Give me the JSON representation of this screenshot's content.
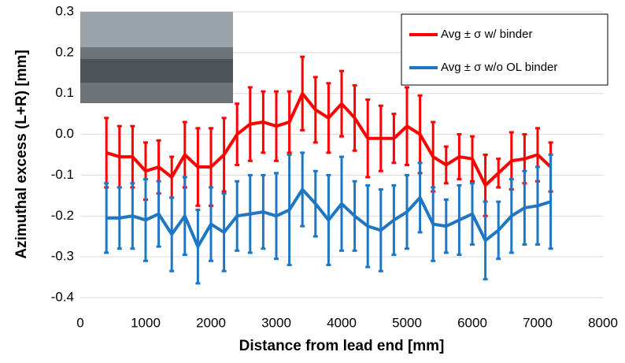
{
  "chart_data": {
    "type": "errorbar-line",
    "x_label": "Distance from lead end [mm]",
    "y_label": "Azimuthal excess (L+R) [mm]",
    "x": [
      400,
      600,
      800,
      1000,
      1200,
      1400,
      1600,
      1800,
      2000,
      2200,
      2400,
      2600,
      2800,
      3000,
      3200,
      3400,
      3600,
      3800,
      4000,
      4200,
      4400,
      4600,
      4800,
      5000,
      5200,
      5400,
      5600,
      5800,
      6000,
      6200,
      6400,
      6600,
      6800,
      7000,
      7200
    ],
    "series": [
      {
        "name": "Avg ± σ w/ binder",
        "color": "#ff0000",
        "values": [
          -0.045,
          -0.055,
          -0.055,
          -0.09,
          -0.08,
          -0.105,
          -0.05,
          -0.08,
          -0.08,
          -0.05,
          0.0,
          0.025,
          0.03,
          0.02,
          0.03,
          0.1,
          0.06,
          0.04,
          0.075,
          0.04,
          -0.01,
          -0.01,
          -0.01,
          0.02,
          0.0,
          -0.055,
          -0.075,
          -0.055,
          -0.06,
          -0.125,
          -0.095,
          -0.065,
          -0.06,
          -0.05,
          -0.08
        ],
        "errors": [
          0.085,
          0.075,
          0.075,
          0.07,
          0.065,
          0.05,
          0.08,
          0.095,
          0.095,
          0.09,
          0.075,
          0.09,
          0.075,
          0.085,
          0.075,
          0.09,
          0.08,
          0.085,
          0.08,
          0.08,
          0.095,
          0.08,
          0.06,
          0.095,
          0.095,
          0.085,
          0.045,
          0.055,
          0.055,
          0.075,
          0.035,
          0.07,
          0.06,
          0.065,
          0.06
        ]
      },
      {
        "name": "Avg ± σ w/o OL binder",
        "color": "#1f77c4",
        "values": [
          -0.205,
          -0.205,
          -0.2,
          -0.21,
          -0.195,
          -0.245,
          -0.2,
          -0.275,
          -0.22,
          -0.24,
          -0.2,
          -0.195,
          -0.19,
          -0.2,
          -0.185,
          -0.135,
          -0.17,
          -0.21,
          -0.17,
          -0.2,
          -0.225,
          -0.235,
          -0.21,
          -0.19,
          -0.155,
          -0.22,
          -0.225,
          -0.21,
          -0.195,
          -0.26,
          -0.235,
          -0.2,
          -0.18,
          -0.175,
          -0.165
        ],
        "errors": [
          0.085,
          0.075,
          0.08,
          0.1,
          0.08,
          0.09,
          0.095,
          0.09,
          0.09,
          0.095,
          0.085,
          0.095,
          0.09,
          0.105,
          0.135,
          0.09,
          0.08,
          0.11,
          0.115,
          0.085,
          0.1,
          0.1,
          0.085,
          0.09,
          0.085,
          0.09,
          0.065,
          0.085,
          0.075,
          0.095,
          0.07,
          0.09,
          0.09,
          0.095,
          0.115
        ]
      }
    ],
    "xlim": [
      0,
      8000
    ],
    "xticks": [
      0,
      1000,
      2000,
      3000,
      4000,
      5000,
      6000,
      7000,
      8000
    ],
    "ylim": [
      -0.4,
      0.3
    ],
    "yticks": [
      -0.4,
      -0.3,
      -0.2,
      -0.1,
      {
        "value": 0,
        "label": "0.0"
      },
      0.1,
      0.2,
      0.3
    ],
    "grid": true,
    "legend": "upper right"
  }
}
